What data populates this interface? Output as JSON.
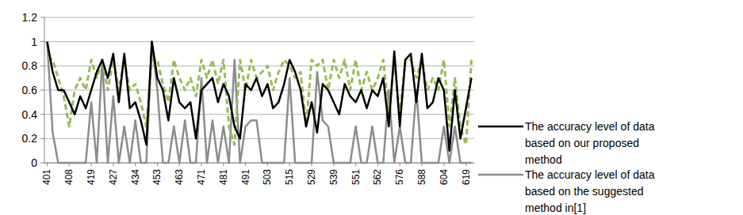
{
  "chart_data": {
    "type": "line",
    "categories": [
      "401",
      null,
      null,
      null,
      "408",
      null,
      null,
      null,
      "419",
      null,
      null,
      null,
      "427",
      null,
      null,
      null,
      "434",
      null,
      null,
      null,
      "453",
      null,
      null,
      null,
      "463",
      null,
      null,
      null,
      "471",
      null,
      null,
      null,
      "481",
      null,
      null,
      null,
      "491",
      null,
      null,
      null,
      "503",
      null,
      null,
      null,
      "515",
      null,
      null,
      null,
      "529",
      null,
      null,
      null,
      "539",
      null,
      null,
      null,
      "551",
      null,
      null,
      null,
      "562",
      null,
      null,
      null,
      "576",
      null,
      null,
      null,
      "588",
      null,
      null,
      null,
      "604",
      null,
      null,
      null,
      "619",
      null
    ],
    "series": [
      {
        "name": "The accuracy level of data based on our proposed method",
        "color": "#000000",
        "line_style": "solid",
        "values": [
          1.0,
          0.75,
          0.6,
          0.6,
          0.5,
          0.4,
          0.55,
          0.45,
          0.6,
          0.75,
          0.85,
          0.7,
          0.9,
          0.5,
          0.9,
          0.45,
          0.5,
          0.35,
          0.15,
          1.0,
          0.7,
          0.6,
          0.35,
          0.7,
          0.5,
          0.45,
          0.5,
          0.2,
          0.6,
          0.65,
          0.7,
          0.5,
          0.65,
          0.55,
          0.3,
          0.2,
          0.65,
          0.6,
          0.7,
          0.55,
          0.65,
          0.45,
          0.5,
          0.65,
          0.85,
          0.75,
          0.6,
          0.3,
          0.5,
          0.25,
          0.65,
          0.6,
          0.5,
          0.4,
          0.65,
          0.55,
          0.5,
          0.6,
          0.45,
          0.6,
          0.55,
          0.7,
          0.3,
          0.92,
          0.3,
          0.85,
          0.9,
          0.5,
          0.9,
          0.45,
          0.5,
          0.7,
          0.6,
          0.1,
          0.6,
          0.2,
          0.45,
          0.7
        ]
      },
      {
        "name": "The accuracy level of data based on the suggested method in[1]",
        "color": "#8c8c8c",
        "line_style": "solid",
        "values": [
          1.0,
          0.25,
          0,
          0,
          0,
          0,
          0,
          0,
          0.5,
          0,
          0.85,
          0,
          0.55,
          0,
          0.3,
          0,
          0.35,
          0,
          0,
          1.0,
          0.6,
          0,
          0,
          0.3,
          0,
          0.35,
          0,
          0,
          0.7,
          0,
          0.35,
          0,
          0.3,
          0,
          0.85,
          0,
          0.3,
          0.35,
          0.35,
          0,
          0,
          0,
          0,
          0,
          0.7,
          0,
          0,
          0,
          0,
          0.75,
          0.35,
          0.3,
          0,
          0,
          0,
          0,
          0.3,
          0,
          0,
          0.3,
          0,
          0,
          0.6,
          0,
          0.3,
          0,
          0,
          0.6,
          0,
          0,
          0,
          0,
          0.3,
          0,
          0.3,
          0,
          0,
          0
        ]
      },
      {
        "name": null,
        "color": "#9bbb59",
        "line_style": "dashed",
        "values": [
          0.87,
          0.85,
          0.7,
          0.55,
          0.3,
          0.6,
          0.7,
          0.6,
          0.85,
          0.7,
          0.85,
          0.6,
          0.85,
          0.6,
          0.85,
          0.6,
          0.65,
          0.5,
          0.3,
          0.85,
          0.85,
          0.65,
          0.5,
          0.85,
          0.7,
          0.6,
          0.7,
          0.55,
          0.85,
          0.7,
          0.85,
          0.65,
          0.85,
          0.3,
          0.15,
          0.85,
          0.6,
          0.85,
          0.7,
          0.75,
          0.8,
          0.6,
          0.75,
          0.85,
          0.8,
          0.7,
          0.75,
          0.3,
          0.85,
          0.8,
          0.85,
          0.6,
          0.85,
          0.7,
          0.85,
          0.6,
          0.85,
          0.6,
          0.75,
          0.6,
          0.7,
          0.85,
          0.4,
          0.85,
          0.4,
          0.85,
          0.85,
          0.7,
          0.85,
          0.6,
          0.7,
          0.6,
          0.85,
          0.3,
          0.7,
          0.3,
          0.15,
          0.85
        ]
      }
    ],
    "ylim": [
      0,
      1.2
    ],
    "yticks": [
      0,
      0.2,
      0.4,
      0.6,
      0.8,
      1,
      1.2
    ],
    "grid": true,
    "legend": "right"
  }
}
